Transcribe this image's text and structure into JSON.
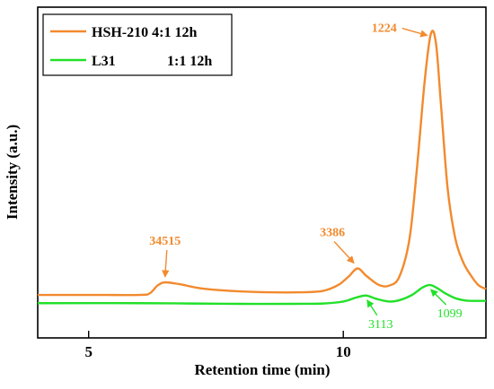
{
  "chart_data": {
    "type": "line",
    "title": "",
    "xlabel": "Retention time (min)",
    "ylabel": "Intensity (a.u.)",
    "xlim": [
      4,
      12.8
    ],
    "xticks": [
      5,
      10
    ],
    "yticks": [],
    "grid": false,
    "legend_position": "top-left",
    "series": [
      {
        "name": "HSH-210 4:1 12h",
        "color": "#F28A2E",
        "points": [
          [
            4.0,
            0.13
          ],
          [
            5.0,
            0.13
          ],
          [
            6.0,
            0.13
          ],
          [
            6.2,
            0.135
          ],
          [
            6.35,
            0.158
          ],
          [
            6.5,
            0.168
          ],
          [
            6.8,
            0.162
          ],
          [
            7.2,
            0.15
          ],
          [
            7.8,
            0.142
          ],
          [
            8.5,
            0.138
          ],
          [
            9.2,
            0.138
          ],
          [
            9.6,
            0.142
          ],
          [
            9.9,
            0.16
          ],
          [
            10.1,
            0.185
          ],
          [
            10.28,
            0.21
          ],
          [
            10.45,
            0.188
          ],
          [
            10.7,
            0.16
          ],
          [
            10.9,
            0.158
          ],
          [
            11.1,
            0.185
          ],
          [
            11.3,
            0.3
          ],
          [
            11.45,
            0.52
          ],
          [
            11.6,
            0.78
          ],
          [
            11.72,
            0.92
          ],
          [
            11.82,
            0.89
          ],
          [
            11.92,
            0.7
          ],
          [
            12.05,
            0.45
          ],
          [
            12.2,
            0.3
          ],
          [
            12.35,
            0.23
          ],
          [
            12.5,
            0.19
          ],
          [
            12.65,
            0.16
          ],
          [
            12.8,
            0.148
          ]
        ],
        "peak_labels": [
          {
            "text": "34515",
            "x": 6.5
          },
          {
            "text": "3386",
            "x": 10.28
          },
          {
            "text": "1224",
            "x": 11.72
          }
        ]
      },
      {
        "name": "L31",
        "name_suffix": "1:1 12h",
        "color": "#22E02A",
        "points": [
          [
            4.0,
            0.105
          ],
          [
            6.0,
            0.105
          ],
          [
            7.0,
            0.104
          ],
          [
            8.0,
            0.103
          ],
          [
            9.0,
            0.103
          ],
          [
            9.6,
            0.104
          ],
          [
            10.0,
            0.11
          ],
          [
            10.25,
            0.122
          ],
          [
            10.45,
            0.128
          ],
          [
            10.65,
            0.118
          ],
          [
            10.9,
            0.11
          ],
          [
            11.1,
            0.114
          ],
          [
            11.35,
            0.13
          ],
          [
            11.55,
            0.152
          ],
          [
            11.7,
            0.16
          ],
          [
            11.85,
            0.15
          ],
          [
            12.0,
            0.135
          ],
          [
            12.2,
            0.12
          ],
          [
            12.4,
            0.113
          ],
          [
            12.6,
            0.112
          ],
          [
            12.8,
            0.112
          ]
        ],
        "peak_labels": [
          {
            "text": "3113",
            "x": 10.45
          },
          {
            "text": "1099",
            "x": 11.7
          }
        ]
      }
    ]
  }
}
